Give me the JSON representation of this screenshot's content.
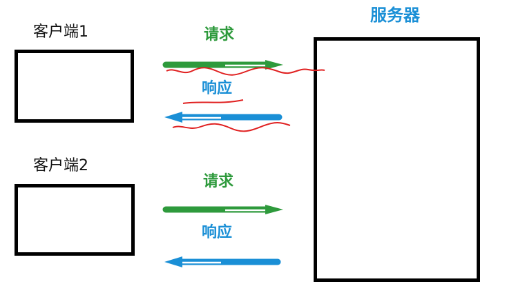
{
  "server": {
    "label": "服务器"
  },
  "clients": [
    {
      "label": "客户端1"
    },
    {
      "label": "客户端2"
    }
  ],
  "arrows": {
    "request_label": "请求",
    "response_label": "响应"
  },
  "colors": {
    "request": "#2e9a3c",
    "response": "#1a8fd6",
    "server_label": "#1a8fd6",
    "annotation": "#e02020",
    "box_border": "#000000"
  }
}
